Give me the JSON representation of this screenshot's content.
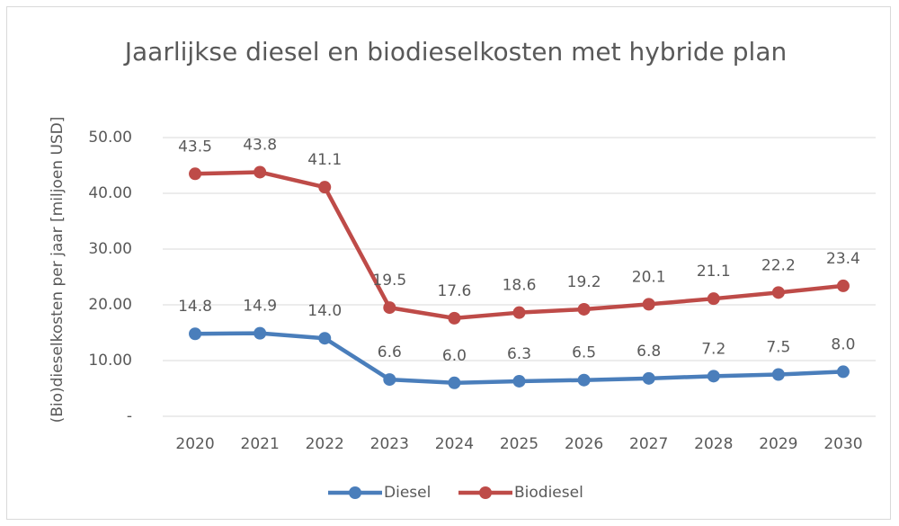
{
  "chart_data": {
    "type": "line",
    "title": "Jaarlijkse diesel en biodieselkosten met hybride plan",
    "y_label": "(Bio)dieselkosten per jaar [miljoen USD]",
    "categories": [
      "2020",
      "2021",
      "2022",
      "2023",
      "2024",
      "2025",
      "2026",
      "2027",
      "2028",
      "2029",
      "2030"
    ],
    "series": [
      {
        "name": "Diesel",
        "color": "#4a7ebb",
        "values": [
          14.8,
          14.9,
          14.0,
          6.6,
          6.0,
          6.3,
          6.5,
          6.8,
          7.2,
          7.5,
          8.0
        ],
        "value_labels": [
          "14.8",
          "14.9",
          "14.0",
          "6.6",
          "6.0",
          "6.3",
          "6.5",
          "6.8",
          "7.2",
          "7.5",
          "8.0"
        ]
      },
      {
        "name": "Biodiesel",
        "color": "#be4b48",
        "values": [
          43.5,
          43.8,
          41.1,
          19.5,
          17.6,
          18.6,
          19.2,
          20.1,
          21.1,
          22.2,
          23.4
        ],
        "value_labels": [
          "43.5",
          "43.8",
          "41.1",
          "19.5",
          "17.6",
          "18.6",
          "19.2",
          "20.1",
          "21.1",
          "22.2",
          "23.4"
        ]
      }
    ],
    "ylim": [
      0,
      50
    ],
    "yticks": [
      {
        "value": 0,
        "label": "-"
      },
      {
        "value": 10,
        "label": "10.00"
      },
      {
        "value": 20,
        "label": "20.00"
      },
      {
        "value": 30,
        "label": "30.00"
      },
      {
        "value": 40,
        "label": "40.00"
      },
      {
        "value": 50,
        "label": "50.00"
      }
    ],
    "grid": true,
    "legend": "bottom"
  }
}
